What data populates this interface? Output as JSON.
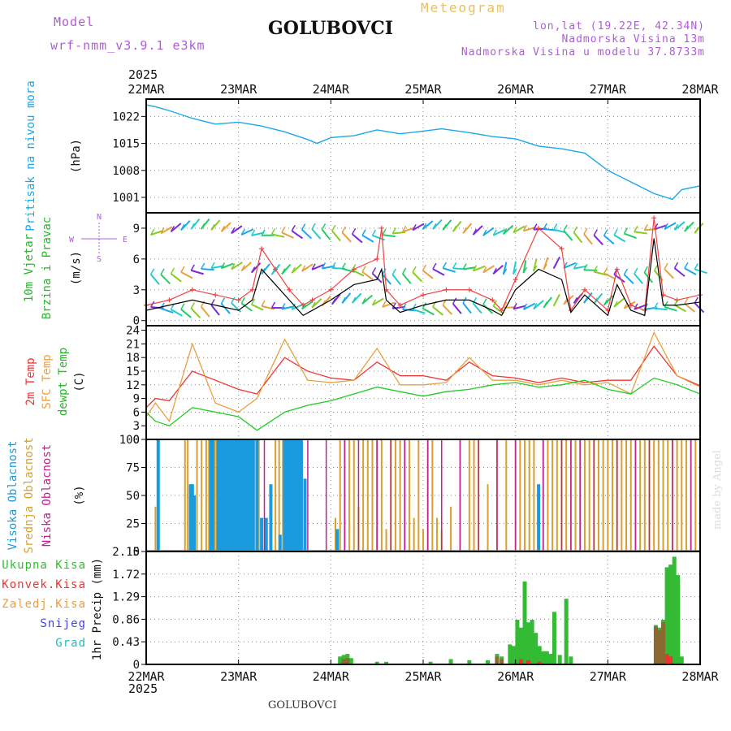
{
  "header": {
    "model_label": "Model",
    "model_name": "wrf-nmm_v3.9.1 e3km",
    "station": "GOLUBOVCI",
    "product": "Meteogram",
    "lonlat": "lon,lat (19.22E, 42.34N)",
    "elevation": "Nadmorska Visina 13m",
    "model_elevation": "Nadmorska Visina u modelu 37.8733m",
    "year_top": "2025",
    "year_bottom": "2025",
    "footer": "GOLUBOVCI",
    "credit": "made by Angel"
  },
  "colors": {
    "purple": "#b05cd8",
    "gold": "#e8c060",
    "pressure": "#1aa8e8",
    "green": "#22bb22",
    "red": "#ee3333",
    "orange": "#e8a040",
    "gust": "#ee4444",
    "speed": "#000000",
    "dewpt": "#22cc22",
    "cloud_high": "#1a9be0",
    "cloud_mid": "#d8a030",
    "cloud_low": "#c02090",
    "precip_total": "#33bb33",
    "precip_conv": "#ee3333",
    "precip_strat": "#ee8833",
    "snow": "#4444dd",
    "hail": "#22bbbb"
  },
  "chart_data": [
    {
      "type": "line",
      "panel": "pressure",
      "title": "Pritisak na nivou mora",
      "ylabel": "(hPa)",
      "days": [
        "22MAR",
        "23MAR",
        "24MAR",
        "25MAR",
        "26MAR",
        "27MAR",
        "28MAR"
      ],
      "yticks": [
        1001,
        1008,
        1015,
        1022
      ],
      "ylim": [
        997,
        1026.5
      ],
      "series": [
        {
          "name": "Pritisak",
          "x": [
            0,
            0.1,
            0.25,
            0.5,
            0.75,
            1,
            1.25,
            1.5,
            1.75,
            1.85,
            2,
            2.25,
            2.5,
            2.75,
            3,
            3.2,
            3.5,
            3.75,
            4,
            4.25,
            4.5,
            4.75,
            5,
            5.25,
            5.5,
            5.7,
            5.8,
            6
          ],
          "y": [
            1025,
            1024.5,
            1023.5,
            1021.5,
            1020,
            1020.5,
            1019.5,
            1018,
            1016,
            1015,
            1016.5,
            1017,
            1018.5,
            1017.5,
            1018.2,
            1018.8,
            1017.8,
            1016.8,
            1016.2,
            1014.3,
            1013.6,
            1012.5,
            1008,
            1005,
            1002,
            1000.5,
            1003,
            1004
          ]
        }
      ]
    },
    {
      "type": "line",
      "panel": "wind",
      "title_lines": [
        "10m Vjetar",
        "Brzina i Pravac"
      ],
      "ylabel": "(m/s)",
      "compass": {
        "n": "N",
        "s": "S",
        "e": "E",
        "w": "W"
      },
      "yticks": [
        0,
        3,
        6,
        9
      ],
      "ylim": [
        -0.5,
        10.5
      ],
      "barb_rows": [
        1.4,
        4.8,
        8.6
      ],
      "series": [
        {
          "name": "Udari (gust)",
          "x": [
            0,
            0.25,
            0.5,
            0.75,
            1,
            1.15,
            1.25,
            1.4,
            1.55,
            1.7,
            1.8,
            2,
            2.25,
            2.5,
            2.55,
            2.6,
            2.75,
            3,
            3.25,
            3.5,
            3.75,
            3.85,
            4,
            4.25,
            4.5,
            4.6,
            4.75,
            5,
            5.1,
            5.25,
            5.4,
            5.5,
            5.6,
            5.75,
            6
          ],
          "y": [
            1.5,
            2,
            3,
            2.5,
            2,
            3,
            7,
            5,
            3,
            1.5,
            2,
            3,
            5,
            6,
            9,
            3,
            1.5,
            2.5,
            3,
            3,
            2,
            1,
            4,
            9,
            7,
            1,
            3,
            1,
            5,
            1.5,
            1,
            10,
            2.5,
            2,
            2.5
          ]
        },
        {
          "name": "Brzina (speed)",
          "x": [
            0,
            0.25,
            0.5,
            0.75,
            1,
            1.15,
            1.25,
            1.4,
            1.55,
            1.7,
            1.8,
            2,
            2.25,
            2.5,
            2.55,
            2.6,
            2.75,
            3,
            3.25,
            3.5,
            3.75,
            3.85,
            4,
            4.25,
            4.5,
            4.6,
            4.75,
            5,
            5.1,
            5.25,
            5.4,
            5.5,
            5.6,
            5.75,
            6
          ],
          "y": [
            1,
            1.5,
            2,
            1.5,
            1,
            2,
            5,
            3.5,
            2,
            0.5,
            1,
            2,
            3.5,
            4,
            5,
            2,
            0.8,
            1.5,
            2,
            2,
            1,
            0.5,
            3,
            5,
            4,
            0.8,
            2.5,
            0.5,
            3.5,
            1,
            0.5,
            8,
            1.5,
            1.5,
            1.8
          ]
        }
      ]
    },
    {
      "type": "line",
      "panel": "temperature",
      "title_lines": [
        "2m Temp",
        "SFC Temp",
        "dewpt Temp"
      ],
      "ylabel": "(C)",
      "yticks": [
        0,
        3,
        6,
        9,
        12,
        15,
        18,
        21,
        24
      ],
      "ylim": [
        0,
        25
      ],
      "series": [
        {
          "name": "2m Temp",
          "x": [
            0,
            0.1,
            0.25,
            0.5,
            0.75,
            1,
            1.2,
            1.5,
            1.75,
            2,
            2.25,
            2.5,
            2.75,
            3,
            3.25,
            3.5,
            3.75,
            4,
            4.25,
            4.5,
            4.75,
            5,
            5.25,
            5.5,
            5.75,
            6
          ],
          "y": [
            7,
            9,
            8.5,
            15,
            13,
            11,
            10,
            18,
            15,
            13.5,
            13,
            17,
            14,
            14,
            13,
            17,
            14,
            13.5,
            12.5,
            13.5,
            12.5,
            13,
            13,
            20.5,
            14,
            11.8
          ]
        },
        {
          "name": "SFC Temp",
          "x": [
            0,
            0.1,
            0.25,
            0.5,
            0.75,
            1,
            1.2,
            1.5,
            1.75,
            2,
            2.25,
            2.5,
            2.75,
            3,
            3.25,
            3.5,
            3.75,
            4,
            4.25,
            4.5,
            4.75,
            5,
            5.25,
            5.5,
            5.75,
            6
          ],
          "y": [
            5,
            8,
            4,
            21,
            8,
            6,
            9,
            22,
            13,
            12.5,
            13,
            20,
            12,
            12,
            12.5,
            18,
            13,
            13,
            12,
            13,
            12,
            12.5,
            10,
            23.5,
            14,
            11.5
          ]
        },
        {
          "name": "dewpt Temp",
          "x": [
            0,
            0.1,
            0.25,
            0.5,
            0.75,
            1,
            1.2,
            1.5,
            1.75,
            2,
            2.25,
            2.5,
            2.75,
            3,
            3.25,
            3.5,
            3.75,
            4,
            4.25,
            4.5,
            4.75,
            5,
            5.25,
            5.5,
            5.75,
            6
          ],
          "y": [
            6,
            4,
            3,
            7,
            6,
            5,
            2,
            6,
            7.5,
            8.5,
            10,
            11.5,
            10.5,
            9.5,
            10.5,
            11,
            12,
            12.5,
            11.5,
            12,
            13,
            11,
            10,
            13.5,
            12,
            10
          ]
        }
      ]
    },
    {
      "type": "bar",
      "panel": "clouds",
      "title_lines": [
        "Visoka Oblacnost",
        "Srednja Oblacnost",
        "Niska Oblacnost"
      ],
      "ylabel": "(%)",
      "yticks": [
        0,
        25,
        50,
        75,
        100
      ],
      "ylim": [
        0,
        100
      ],
      "series": [
        {
          "name": "Visoka",
          "x": [
            0.13,
            0.48,
            0.5,
            0.52,
            0.7,
            0.72,
            0.78,
            0.8,
            0.82,
            0.84,
            0.86,
            0.88,
            0.9,
            0.92,
            0.94,
            0.96,
            0.98,
            1.0,
            1.02,
            1.04,
            1.06,
            1.08,
            1.1,
            1.12,
            1.14,
            1.16,
            1.2,
            1.25,
            1.3,
            1.35,
            1.45,
            1.5,
            1.52,
            1.54,
            1.56,
            1.58,
            1.6,
            1.62,
            1.64,
            1.66,
            1.68,
            1.72,
            2.07,
            4.25
          ],
          "values": [
            100,
            60,
            60,
            50,
            100,
            100,
            100,
            100,
            100,
            100,
            100,
            100,
            100,
            100,
            100,
            100,
            100,
            100,
            100,
            100,
            100,
            100,
            100,
            100,
            100,
            100,
            100,
            30,
            30,
            60,
            15,
            100,
            100,
            100,
            100,
            100,
            100,
            100,
            100,
            100,
            100,
            65,
            20,
            60
          ]
        },
        {
          "name": "Srednja",
          "x": [
            0.1,
            0.42,
            0.45,
            0.55,
            0.6,
            0.65,
            0.68,
            0.74,
            0.76,
            0.92,
            1.1,
            1.22,
            1.4,
            1.44,
            1.48,
            1.55,
            2.05,
            2.1,
            2.15,
            2.2,
            2.25,
            2.3,
            2.35,
            2.4,
            2.45,
            2.5,
            2.55,
            2.6,
            2.65,
            2.7,
            2.75,
            2.8,
            2.85,
            2.9,
            2.95,
            3.0,
            3.05,
            3.1,
            3.15,
            3.2,
            3.3,
            3.4,
            3.5,
            3.55,
            3.6,
            3.7,
            3.8,
            3.9,
            4.0,
            4.05,
            4.1,
            4.15,
            4.2,
            4.3,
            4.35,
            4.4,
            4.45,
            4.5,
            4.55,
            4.6,
            4.65,
            4.7,
            4.75,
            4.8,
            4.85,
            4.9,
            4.95,
            5.0,
            5.05,
            5.1,
            5.15,
            5.2,
            5.25,
            5.3,
            5.35,
            5.4,
            5.45,
            5.5,
            5.55,
            5.6,
            5.65,
            5.7,
            5.75,
            5.8,
            5.85,
            5.9,
            5.95
          ],
          "values": [
            40,
            100,
            100,
            100,
            100,
            100,
            100,
            100,
            100,
            100,
            100,
            100,
            100,
            100,
            100,
            100,
            30,
            100,
            100,
            100,
            100,
            40,
            100,
            100,
            100,
            100,
            100,
            20,
            100,
            100,
            100,
            100,
            100,
            30,
            100,
            20,
            100,
            100,
            30,
            20,
            40,
            100,
            100,
            100,
            100,
            60,
            100,
            100,
            100,
            100,
            100,
            100,
            100,
            100,
            100,
            100,
            100,
            100,
            100,
            100,
            100,
            100,
            100,
            100,
            100,
            100,
            100,
            100,
            100,
            100,
            100,
            100,
            100,
            100,
            100,
            100,
            100,
            100,
            100,
            100,
            100,
            100,
            100,
            100,
            100,
            100,
            100
          ]
        },
        {
          "name": "Niska",
          "x": [
            1.28,
            1.75,
            1.95,
            2.15,
            2.3,
            2.5,
            2.65,
            2.8,
            3.05,
            3.2,
            3.4,
            3.6,
            3.8,
            4.0,
            4.3,
            4.5,
            4.6,
            4.7,
            4.85,
            5.1,
            5.3,
            5.45,
            5.7,
            5.9
          ],
          "values": [
            100,
            100,
            100,
            100,
            100,
            100,
            100,
            100,
            100,
            100,
            100,
            100,
            100,
            100,
            100,
            100,
            100,
            100,
            100,
            100,
            100,
            100,
            100,
            100
          ]
        }
      ]
    },
    {
      "type": "bar",
      "panel": "precip",
      "title_lines": [
        "Ukupna Kisa",
        "Konvek.Kisa",
        "Zaledj.Kisa",
        "Snijeg",
        "Grad"
      ],
      "ylabel": "1hr Precip (mm)",
      "yticks": [
        0,
        0.43,
        0.86,
        1.29,
        1.72,
        2.15
      ],
      "ylim": [
        0,
        2.15
      ],
      "series": [
        {
          "name": "Ukupna Kisa",
          "x": [
            2.1,
            2.14,
            2.18,
            2.22,
            2.5,
            2.6,
            3.08,
            3.3,
            3.5,
            3.7,
            3.8,
            3.85,
            3.94,
            3.98,
            4.02,
            4.06,
            4.1,
            4.14,
            4.18,
            4.22,
            4.26,
            4.3,
            4.34,
            4.38,
            4.42,
            4.48,
            4.55,
            4.6,
            5.52,
            5.56,
            5.6,
            5.64,
            5.68,
            5.72,
            5.76,
            5.8
          ],
          "values": [
            0.15,
            0.18,
            0.2,
            0.12,
            0.05,
            0.05,
            0.05,
            0.1,
            0.08,
            0.08,
            0.2,
            0.15,
            0.38,
            0.35,
            0.85,
            0.7,
            1.58,
            0.8,
            0.85,
            0.6,
            0.35,
            0.25,
            0.25,
            0.2,
            1.0,
            0.18,
            1.25,
            0.15,
            0.75,
            0.7,
            0.85,
            1.85,
            1.9,
            2.05,
            1.7,
            0.15
          ]
        },
        {
          "name": "Konvek.Kisa",
          "x": [
            4.06,
            4.14,
            4.26,
            5.64,
            5.68
          ],
          "values": [
            0.1,
            0.08,
            0.05,
            0.2,
            0.15
          ]
        },
        {
          "name": "Zaledj.Kisa",
          "x": [
            2.14,
            2.18,
            3.8,
            3.85,
            5.52,
            5.56,
            5.6
          ],
          "values": [
            0.1,
            0.12,
            0.15,
            0.1,
            0.72,
            0.65,
            0.8
          ]
        }
      ]
    }
  ]
}
